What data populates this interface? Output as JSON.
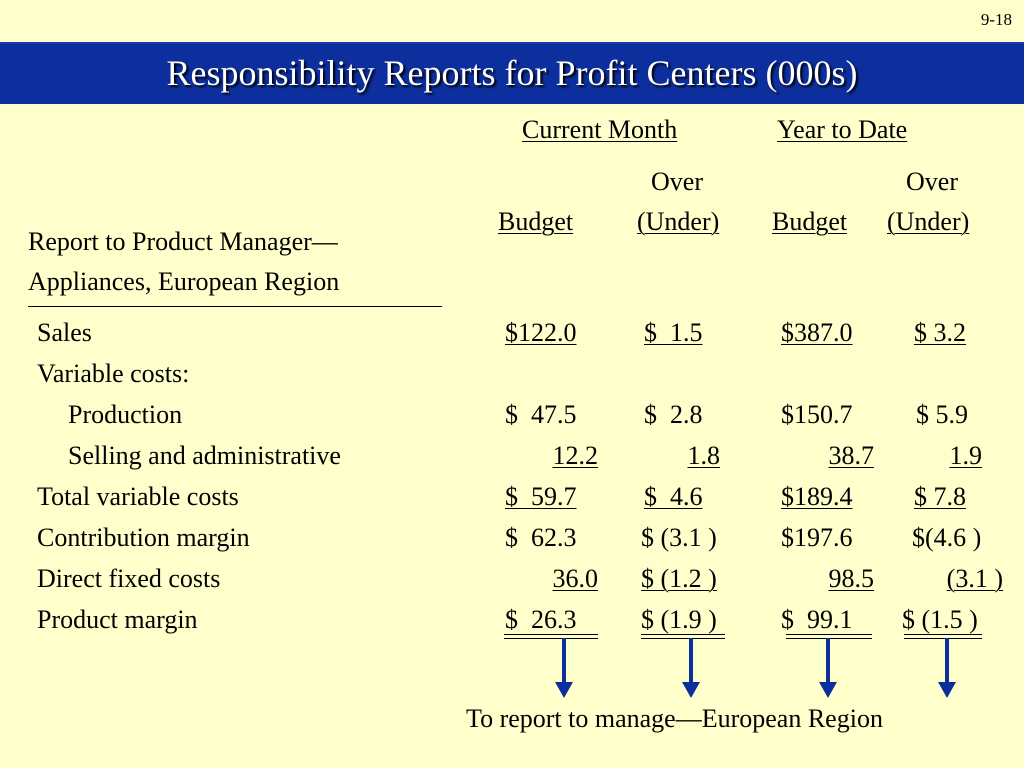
{
  "page_number": "9-18",
  "title": "Responsibility Reports for Profit Centers (000s)",
  "column_groups": {
    "current_month": "Current Month",
    "year_to_date": "Year to Date"
  },
  "column_headers": {
    "over_top": "Over",
    "budget": "Budget",
    "under": "(Under)"
  },
  "report_label": {
    "line1": "Report to Product Manager—",
    "line2": "Appliances, European Region"
  },
  "rows": [
    {
      "label": "Sales",
      "cm_budget": "$122.0",
      "cm_over": "$  1.5",
      "ytd_budget": "$387.0",
      "ytd_over": "$ 3.2"
    },
    {
      "label": "Variable costs:",
      "cm_budget": "",
      "cm_over": "",
      "ytd_budget": "",
      "ytd_over": ""
    },
    {
      "label": "Production",
      "cm_budget": "$  47.5",
      "cm_over": "$  2.8",
      "ytd_budget": "$150.7",
      "ytd_over": "$ 5.9"
    },
    {
      "label": "Selling and administrative",
      "cm_budget": "12.2",
      "cm_over": "1.8",
      "ytd_budget": "38.7",
      "ytd_over": "1.9"
    },
    {
      "label": "Total variable costs",
      "cm_budget": "$  59.7",
      "cm_over": "$  4.6",
      "ytd_budget": "$189.4",
      "ytd_over": "$ 7.8"
    },
    {
      "label": "Contribution margin",
      "cm_budget": "$  62.3",
      "cm_over": "$ (3.1 )",
      "ytd_budget": "$197.6",
      "ytd_over": "$(4.6 )"
    },
    {
      "label": "Direct fixed costs",
      "cm_budget": "36.0",
      "cm_over": "$ (1.2 )",
      "ytd_budget": "98.5",
      "ytd_over": "(3.1 )"
    },
    {
      "label": "Product margin",
      "cm_budget": "$  26.3",
      "cm_over": "$ (1.9 )",
      "ytd_budget": "$  99.1",
      "ytd_over": "$ (1.5 )"
    }
  ],
  "footer_note": "To report to manage—European Region",
  "colors": {
    "background": "#ffffcc",
    "title_bar": "#0d2f9e",
    "arrow": "#0d2f9e"
  },
  "arrow_icon": "arrow-down-icon"
}
